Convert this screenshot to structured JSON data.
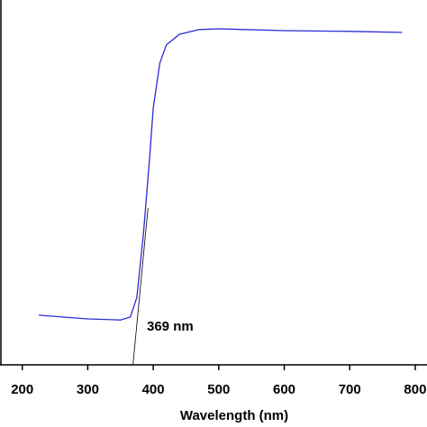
{
  "chart_data": {
    "type": "line",
    "x_label": "Wavelength (nm)",
    "annotation": "369 nm",
    "series": [
      {
        "color": "#2b2bd6",
        "x": [
          225,
          300,
          350,
          365,
          375,
          385,
          395,
          400,
          410,
          420,
          440,
          470,
          500,
          600,
          700,
          780
        ],
        "values": [
          13.6,
          12.6,
          12.3,
          13.1,
          18.5,
          35.8,
          58,
          70.4,
          82.7,
          87.7,
          90.6,
          91.9,
          92.1,
          91.6,
          91.4,
          91.1
        ]
      }
    ],
    "tangent": {
      "color": "#000000",
      "x": [
        369,
        392
      ],
      "values": [
        0,
        43
      ]
    },
    "xlim": [
      166,
      818
    ],
    "xticks": [
      200,
      300,
      400,
      500,
      600,
      700,
      800
    ],
    "ylim": [
      0,
      100
    ]
  }
}
